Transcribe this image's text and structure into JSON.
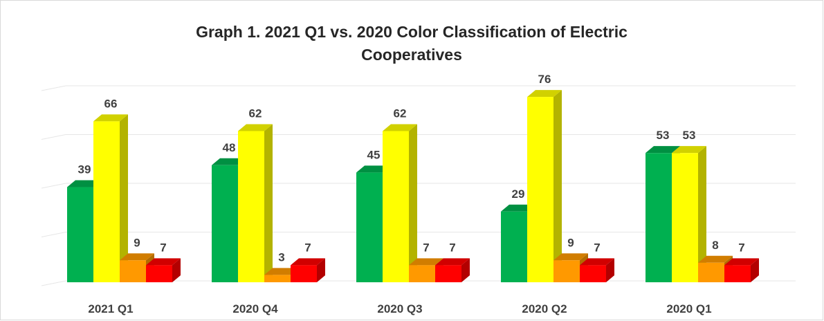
{
  "chart_data": {
    "type": "bar3d",
    "title": "Graph 1. 2021 Q1 vs. 2020 Color Classification of Electric Cooperatives",
    "categories": [
      "2021 Q1",
      "2020 Q4",
      "2020 Q3",
      "2020 Q2",
      "2020 Q1"
    ],
    "series": [
      {
        "color": "#00b050",
        "values": [
          39,
          48,
          45,
          29,
          53
        ]
      },
      {
        "color": "#ffff00",
        "values": [
          66,
          62,
          62,
          76,
          53
        ]
      },
      {
        "color": "#ff9900",
        "values": [
          9,
          3,
          7,
          9,
          8
        ]
      },
      {
        "color": "#ff0000",
        "values": [
          7,
          7,
          7,
          7,
          7
        ]
      }
    ],
    "ylim": [
      0,
      80
    ],
    "yticks": [
      0,
      20,
      40,
      60,
      80
    ],
    "grid": true
  }
}
